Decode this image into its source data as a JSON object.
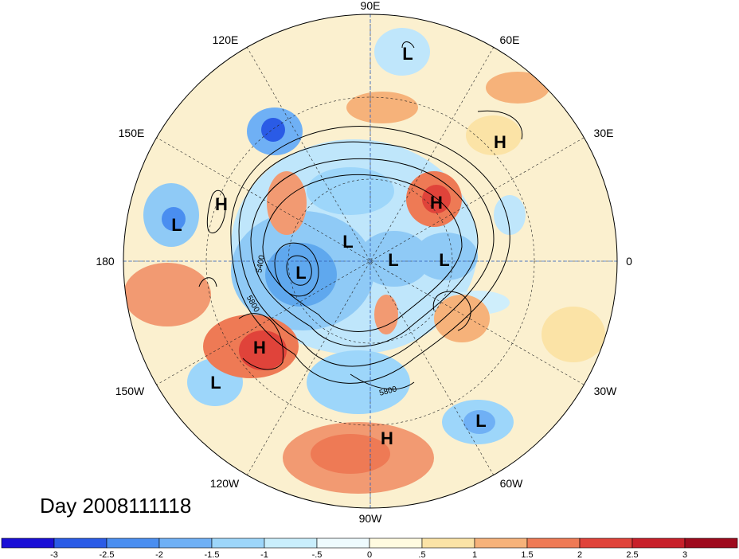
{
  "title": "Day 2008111118",
  "longitude_labels": {
    "lon_90e": "90E",
    "lon_60e": "60E",
    "lon_30e": "30E",
    "lon_0": "0",
    "lon_30w": "30W",
    "lon_60w": "60W",
    "lon_90w": "90W",
    "lon_120w": "120W",
    "lon_150w": "150W",
    "lon_180": "180",
    "lon_150e": "150E",
    "lon_120e": "120E"
  },
  "pressure_centers": [
    {
      "type": "L",
      "label": "L"
    },
    {
      "type": "H",
      "label": "H"
    },
    {
      "type": "H",
      "label": "H"
    },
    {
      "type": "L",
      "label": "L"
    },
    {
      "type": "H",
      "label": "H"
    },
    {
      "type": "L",
      "label": "L"
    },
    {
      "type": "L",
      "label": "L"
    },
    {
      "type": "L",
      "label": "L"
    },
    {
      "type": "L",
      "label": "L"
    },
    {
      "type": "H",
      "label": "H"
    },
    {
      "type": "L",
      "label": "L"
    },
    {
      "type": "H",
      "label": "H"
    },
    {
      "type": "L",
      "label": "L"
    }
  ],
  "contour_labels": [
    "5400",
    "5800",
    "5800"
  ],
  "colorbar": {
    "ticks": [
      "-3",
      "-2.5",
      "-2",
      "-1.5",
      "-1",
      "-.5",
      "0",
      ".5",
      "1",
      "1.5",
      "2",
      "2.5",
      "3"
    ],
    "colors": [
      "#1a0fd6",
      "#2a5be6",
      "#4a8ef0",
      "#6fb0f5",
      "#9dd6fa",
      "#c9eefc",
      "#eefbfe",
      "#fffbe0",
      "#fbe3a6",
      "#f6b27a",
      "#ee7a55",
      "#e0433a",
      "#c8202a",
      "#9e0a1d"
    ]
  }
}
